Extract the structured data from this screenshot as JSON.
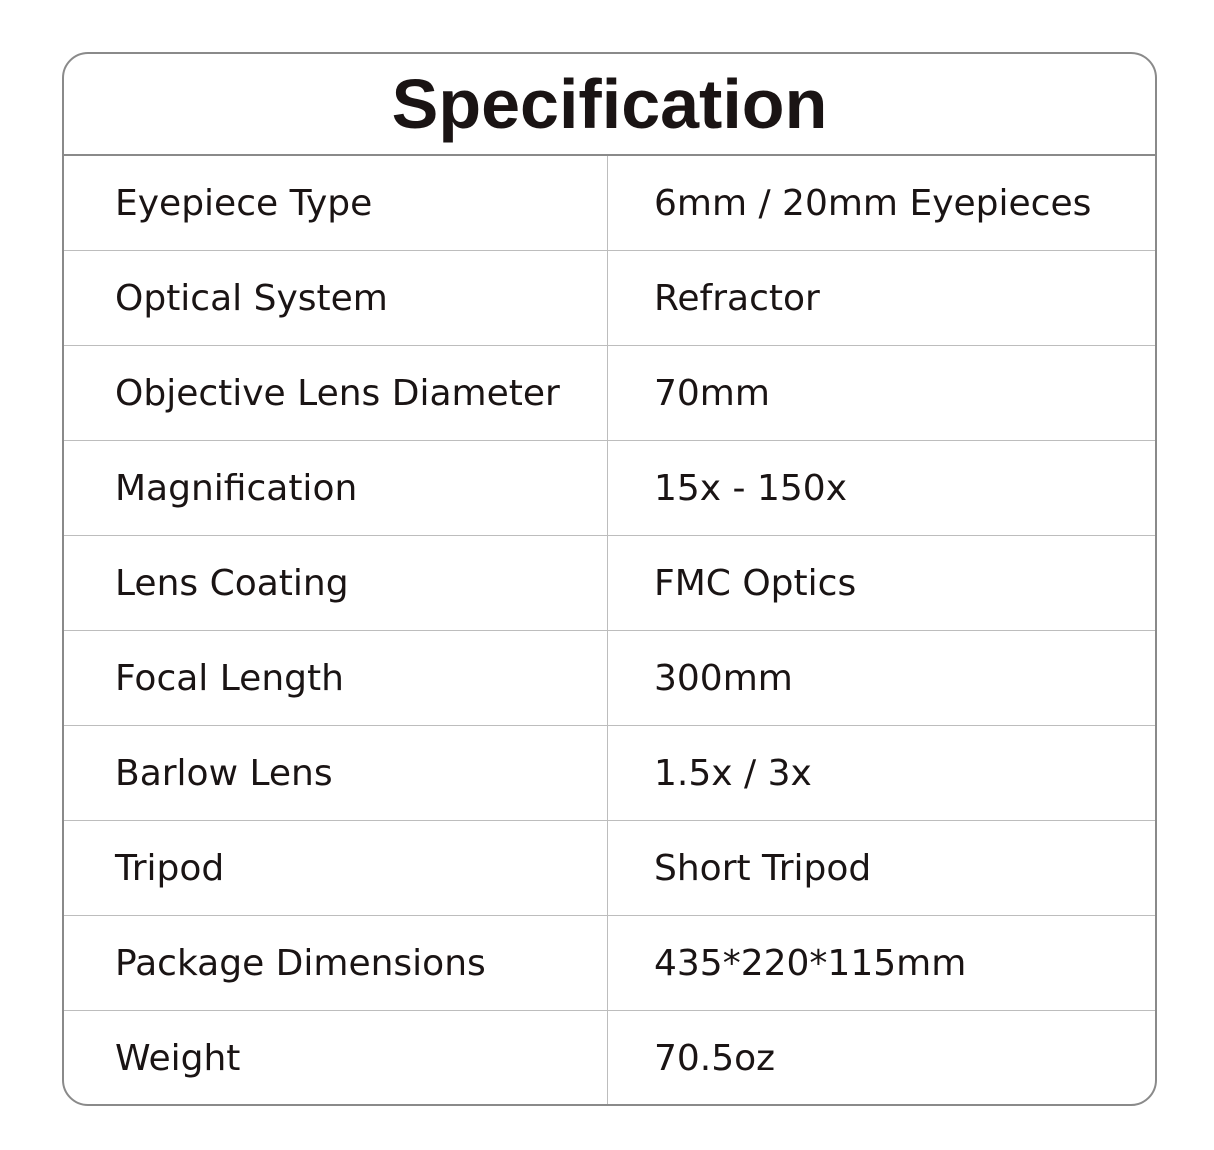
{
  "title": "Specification",
  "rows": [
    {
      "label": "Eyepiece Type",
      "value": "6mm / 20mm Eyepieces"
    },
    {
      "label": "Optical System",
      "value": "Refractor"
    },
    {
      "label": "Objective Lens Diameter",
      "value": "70mm"
    },
    {
      "label": "Magnification",
      "value": "15x - 150x"
    },
    {
      "label": "Lens Coating",
      "value": "FMC Optics"
    },
    {
      "label": "Focal Length",
      "value": "300mm"
    },
    {
      "label": "Barlow Lens",
      "value": "1.5x / 3x"
    },
    {
      "label": "Tripod",
      "value": "Short Tripod"
    },
    {
      "label": "Package Dimensions",
      "value": "435*220*115mm"
    },
    {
      "label": "Weight",
      "value": "70.5oz"
    }
  ]
}
